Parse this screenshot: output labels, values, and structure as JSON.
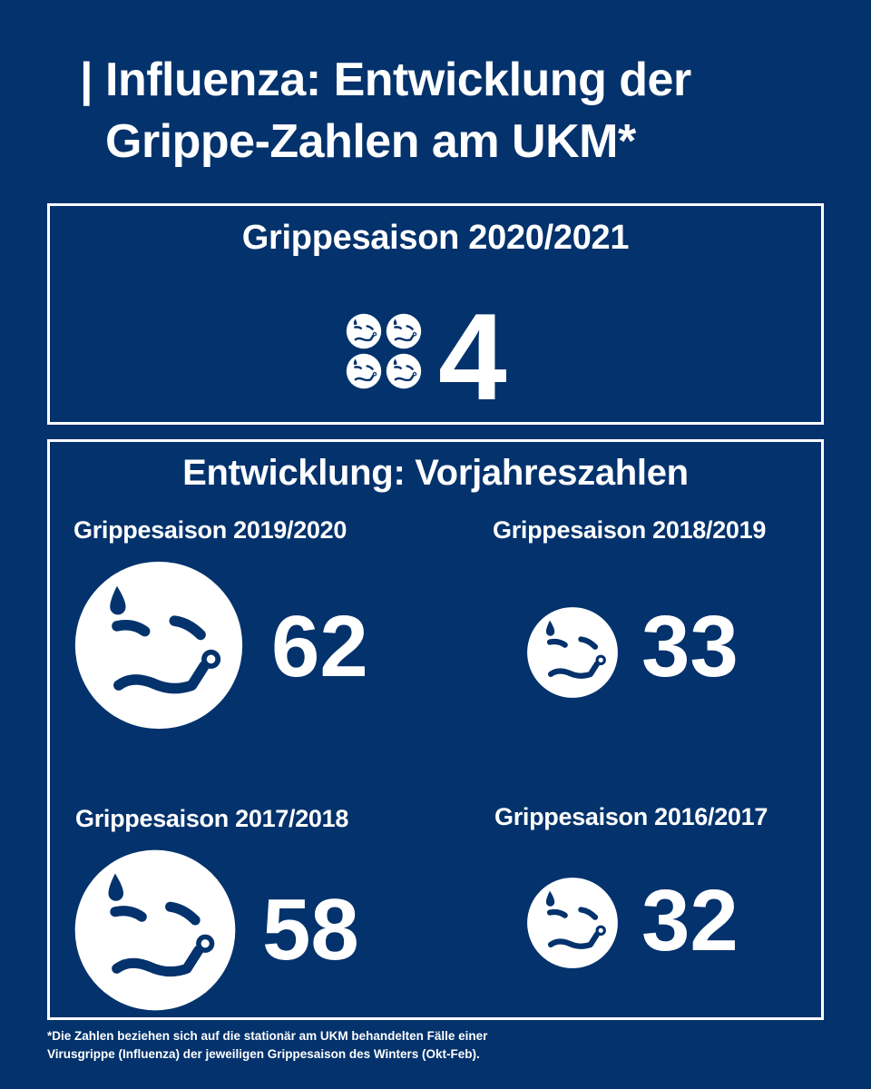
{
  "title": {
    "line1": "| Influenza: Entwicklung der",
    "line2": "Grippe-Zahlen am UKM*"
  },
  "current": {
    "heading": "Grippesaison 2020/2021",
    "count": "4",
    "icon": "sick-face-icon"
  },
  "history": {
    "heading": "Entwicklung: Vorjahreszahlen",
    "seasons": [
      {
        "label": "Grippesaison 2019/2020",
        "count": "62"
      },
      {
        "label": "Grippesaison 2018/2019",
        "count": "33"
      },
      {
        "label": "Grippesaison 2017/2018",
        "count": "58"
      },
      {
        "label": "Grippesaison 2016/2017",
        "count": "32"
      }
    ]
  },
  "footnote": {
    "line1": "*Die Zahlen beziehen sich auf die stationär am UKM behandelten Fälle einer",
    "line2": "Virusgrippe (Influenza) der jeweiligen Grippesaison des Winters (Okt-Feb)."
  },
  "colors": {
    "background": "#03326c",
    "foreground": "#ffffff"
  }
}
